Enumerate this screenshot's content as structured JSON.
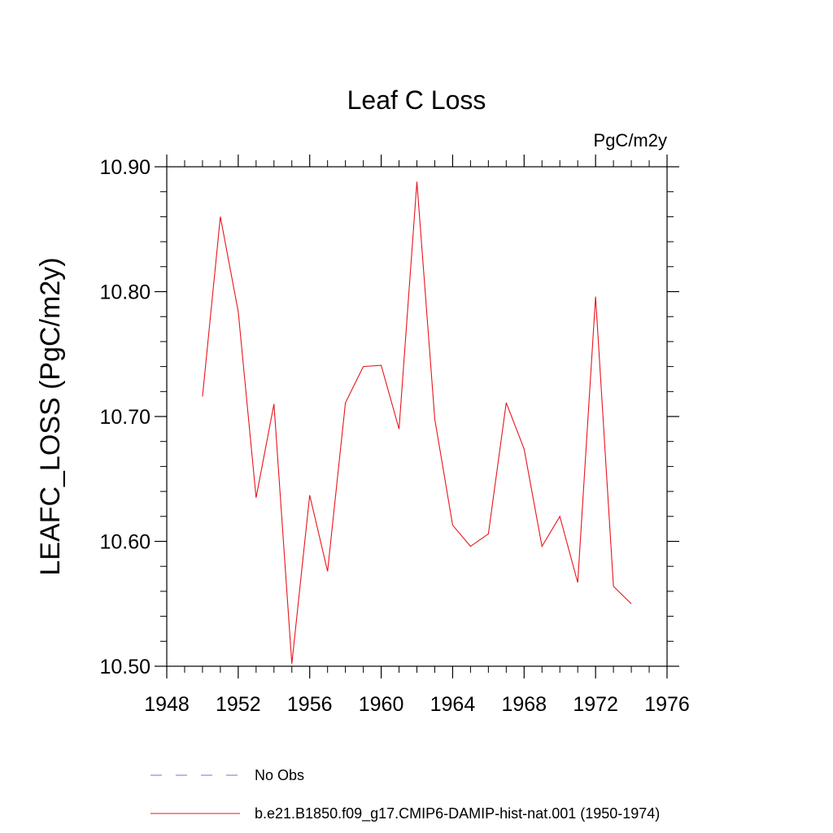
{
  "chart_data": {
    "type": "line",
    "title": "Leaf C Loss",
    "units_label": "PgC/m2y",
    "ylabel": "LEAFC_LOSS  (PgC/m2y)",
    "xlabel": "",
    "xlim": [
      1948,
      1976
    ],
    "ylim": [
      10.5,
      10.9
    ],
    "x_ticks": [
      1948,
      1952,
      1956,
      1960,
      1964,
      1968,
      1972,
      1976
    ],
    "x_tick_labels": [
      "1948",
      "1952",
      "1956",
      "1960",
      "1964",
      "1968",
      "1972",
      "1976"
    ],
    "y_ticks": [
      10.5,
      10.6,
      10.7,
      10.8,
      10.9
    ],
    "y_tick_labels": [
      "10.50",
      "10.60",
      "10.70",
      "10.80",
      "10.90"
    ],
    "grid": false,
    "legend_placement": "bottom",
    "series": [
      {
        "name": "b.e21.B1850.f09_g17.CMIP6-DAMIP-hist-nat.001 (1950-1974)",
        "color": "#e8141c",
        "dash": "solid",
        "x": [
          1950,
          1951,
          1952,
          1953,
          1954,
          1955,
          1956,
          1957,
          1958,
          1959,
          1960,
          1961,
          1962,
          1963,
          1964,
          1965,
          1966,
          1967,
          1968,
          1969,
          1970,
          1971,
          1972,
          1973,
          1974
        ],
        "y": [
          10.716,
          10.86,
          10.784,
          10.635,
          10.71,
          10.502,
          10.637,
          10.576,
          10.711,
          10.74,
          10.741,
          10.69,
          10.888,
          10.698,
          10.613,
          10.596,
          10.606,
          10.711,
          10.674,
          10.596,
          10.62,
          10.567,
          10.796,
          10.564,
          10.55
        ]
      }
    ],
    "legend": [
      {
        "label": "No Obs",
        "color": "#7b6fd0",
        "dash": "dashed"
      },
      {
        "label": "b.e21.B1850.f09_g17.CMIP6-DAMIP-hist-nat.001 (1950-1974)",
        "color": "#e8141c",
        "dash": "solid"
      }
    ]
  }
}
